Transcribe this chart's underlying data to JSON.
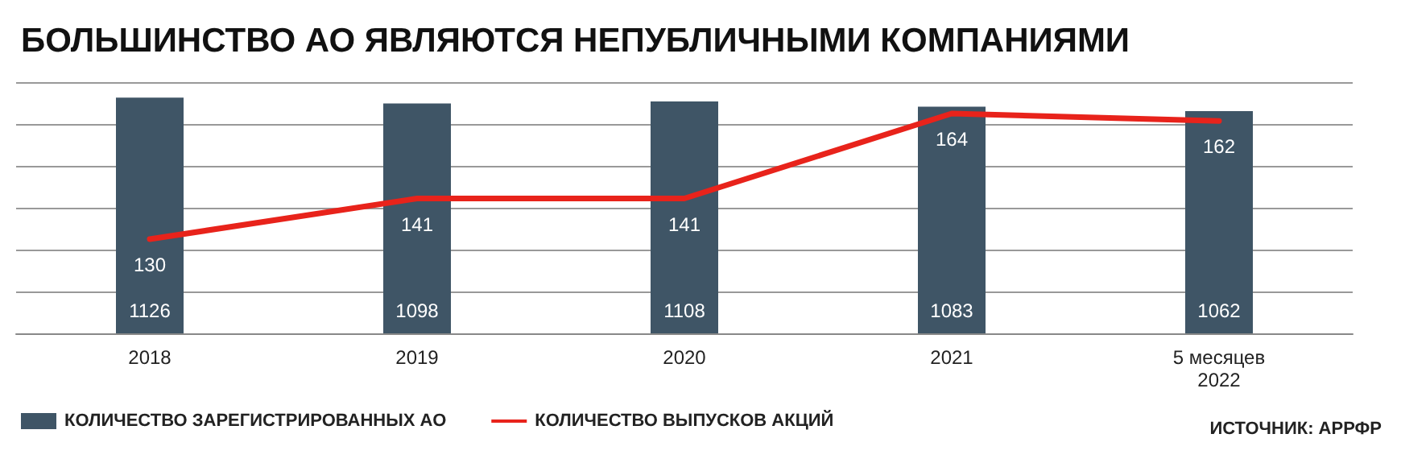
{
  "chart_data": {
    "type": "bar",
    "title": "БОЛЬШИНСТВО АО ЯВЛЯЮТСЯ НЕПУБЛИЧНЫМИ КОМПАНИЯМИ",
    "categories": [
      "2018",
      "2019",
      "2020",
      "2021",
      "5 месяцев\n2022"
    ],
    "series": [
      {
        "name": "КОЛИЧЕСТВО ЗАРЕГИСТРИРОВАННЫХ АО",
        "color": "#3f5566",
        "values": [
          1126,
          1098,
          1108,
          1083,
          1062
        ]
      },
      {
        "name": "КОЛИЧЕСТВО ВЫПУСКОВ АКЦИЙ",
        "type": "line",
        "axis": "y2",
        "color": "#e8231b",
        "values": [
          130,
          141,
          141,
          164,
          162
        ]
      }
    ],
    "ylim": [
      0,
      1200
    ],
    "yticks": [
      {
        "value": 0,
        "label": null
      },
      {
        "value": 200,
        "label": null
      },
      {
        "value": 400,
        "label": null
      },
      {
        "value": 600,
        "label": null
      },
      {
        "value": 800,
        "label": null
      },
      {
        "value": 1000,
        "label": null
      },
      {
        "value": 1200,
        "label": null
      }
    ],
    "grid": "y",
    "legend": "bottom left",
    "data_labels": true,
    "tick_labels": "x",
    "line_style": "solid",
    "marker": "none",
    "annotations": [
      "ИСТОЧНИК: АРРФР"
    ]
  }
}
